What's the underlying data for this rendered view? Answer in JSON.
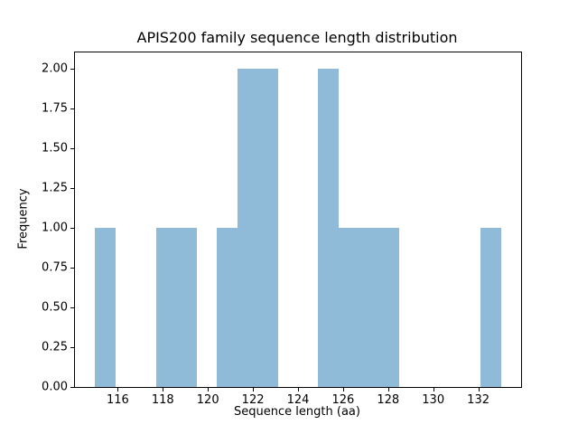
{
  "chart_data": {
    "type": "bar",
    "subtype": "histogram",
    "title": "APIS200 family sequence length distribution",
    "xlabel": "Sequence length (aa)",
    "ylabel": "Frequency",
    "bar_color": "#8fbbd9",
    "axis_color": "#000000",
    "background_color": "#ffffff",
    "grid": false,
    "legend": false,
    "xlim": [
      114.1,
      133.9
    ],
    "ylim": [
      0,
      2.1
    ],
    "xtick_values": [
      116,
      118,
      120,
      122,
      124,
      126,
      128,
      130,
      132
    ],
    "xtick_labels": [
      "116",
      "118",
      "120",
      "122",
      "124",
      "126",
      "128",
      "130",
      "132"
    ],
    "ytick_values": [
      0,
      0.25,
      0.5,
      0.75,
      1.0,
      1.25,
      1.5,
      1.75,
      2.0
    ],
    "ytick_labels": [
      "0.00",
      "0.25",
      "0.50",
      "0.75",
      "1.00",
      "1.25",
      "1.50",
      "1.75",
      "2.00"
    ],
    "bin_edges": [
      115.0,
      115.9,
      116.8,
      117.7,
      118.6,
      119.5,
      120.4,
      121.3,
      122.2,
      123.1,
      124.0,
      124.9,
      125.8,
      126.7,
      127.6,
      128.5,
      129.4,
      130.3,
      131.2,
      132.1,
      133.0
    ],
    "counts": [
      1,
      0,
      0,
      1,
      1,
      0,
      1,
      2,
      2,
      0,
      0,
      2,
      1,
      1,
      1,
      0,
      0,
      0,
      0,
      1
    ]
  }
}
